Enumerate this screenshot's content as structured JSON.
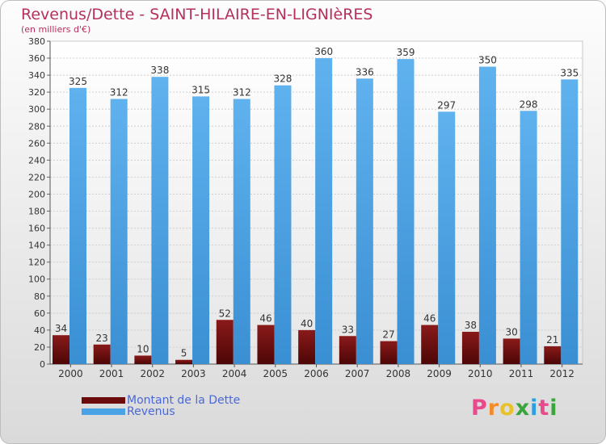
{
  "header": {
    "title": "Revenus/Dette - SAINT-HILAIRE-EN-LIGNIèRES",
    "subtitle": "(en milliers d'€)"
  },
  "legend": [
    {
      "label": "Montant de la Dette",
      "color": "#6b0c0c"
    },
    {
      "label": "Revenus",
      "color": "#4aa3e4"
    }
  ],
  "logo": {
    "text": "Proxiti",
    "colors": [
      "#e84a8c",
      "#f28b2a",
      "#e8c22a",
      "#3aa53a",
      "#2a9ee0",
      "#e84a8c",
      "#3aa53a"
    ]
  },
  "chart_data": {
    "type": "bar",
    "categories": [
      "2000",
      "2001",
      "2002",
      "2003",
      "2004",
      "2005",
      "2006",
      "2007",
      "2008",
      "2009",
      "2010",
      "2011",
      "2012"
    ],
    "series": [
      {
        "name": "Montant de la Dette",
        "values": [
          34,
          23,
          10,
          5,
          52,
          46,
          40,
          33,
          27,
          46,
          38,
          30,
          21
        ],
        "color": "#6b0c0c"
      },
      {
        "name": "Revenus",
        "values": [
          325,
          312,
          338,
          315,
          312,
          328,
          360,
          336,
          359,
          297,
          350,
          298,
          335
        ],
        "color": "#4aa3e4"
      }
    ],
    "ylim": [
      0,
      380
    ],
    "ytick_step": 20,
    "grid": true
  }
}
